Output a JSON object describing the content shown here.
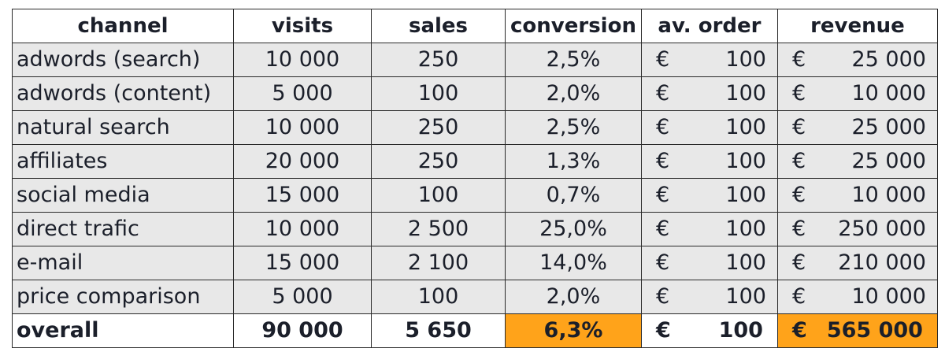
{
  "headers": [
    "channel",
    "visits",
    "sales",
    "conversion",
    "av. order",
    "revenue"
  ],
  "currency": "€",
  "rows": [
    {
      "channel": "adwords (search)",
      "visits": "10 000",
      "sales": "250",
      "conversion": "2,5%",
      "av_order": "100",
      "revenue": "25 000"
    },
    {
      "channel": "adwords (content)",
      "visits": "5 000",
      "sales": "100",
      "conversion": "2,0%",
      "av_order": "100",
      "revenue": "10 000"
    },
    {
      "channel": "natural search",
      "visits": "10 000",
      "sales": "250",
      "conversion": "2,5%",
      "av_order": "100",
      "revenue": "25 000"
    },
    {
      "channel": "affiliates",
      "visits": "20 000",
      "sales": "250",
      "conversion": "1,3%",
      "av_order": "100",
      "revenue": "25 000"
    },
    {
      "channel": "social media",
      "visits": "15 000",
      "sales": "100",
      "conversion": "0,7%",
      "av_order": "100",
      "revenue": "10 000"
    },
    {
      "channel": "direct trafic",
      "visits": "10 000",
      "sales": "2 500",
      "conversion": "25,0%",
      "av_order": "100",
      "revenue": "250 000"
    },
    {
      "channel": "e-mail",
      "visits": "15 000",
      "sales": "2 100",
      "conversion": "14,0%",
      "av_order": "100",
      "revenue": "210 000"
    },
    {
      "channel": "price comparison",
      "visits": "5 000",
      "sales": "100",
      "conversion": "2,0%",
      "av_order": "100",
      "revenue": "10 000"
    }
  ],
  "total": {
    "channel": "overall",
    "visits": "90 000",
    "sales": "5 650",
    "conversion": "6,3%",
    "av_order": "100",
    "revenue": "565 000"
  },
  "colors": {
    "highlight": "#ffa31a",
    "row_fill": "#e8e8e8"
  }
}
